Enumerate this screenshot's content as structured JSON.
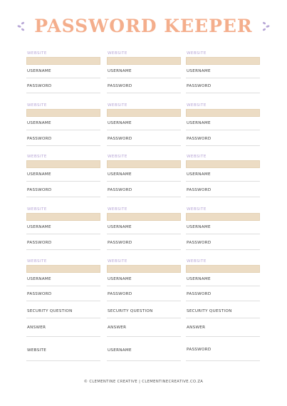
{
  "header": {
    "title": "PASSWORD KEEPER",
    "accent_color": "#f4ae8c",
    "sprig_color": "#b7a6d6",
    "left_icon": "sprig-icon",
    "right_icon": "sprig-icon"
  },
  "labels": {
    "website": "WEBSITE",
    "username": "USERNAME",
    "password": "PASSWORD",
    "security_question": "SECURITY QUESTION",
    "answer": "ANSWER"
  },
  "colors": {
    "field_fill": "#ecdcc4",
    "website_label": "#b7a6d6"
  },
  "footer": {
    "text": "© CLEMENTINE CREATIVE | CLEMENTINECREATIVE.CO.ZA"
  }
}
